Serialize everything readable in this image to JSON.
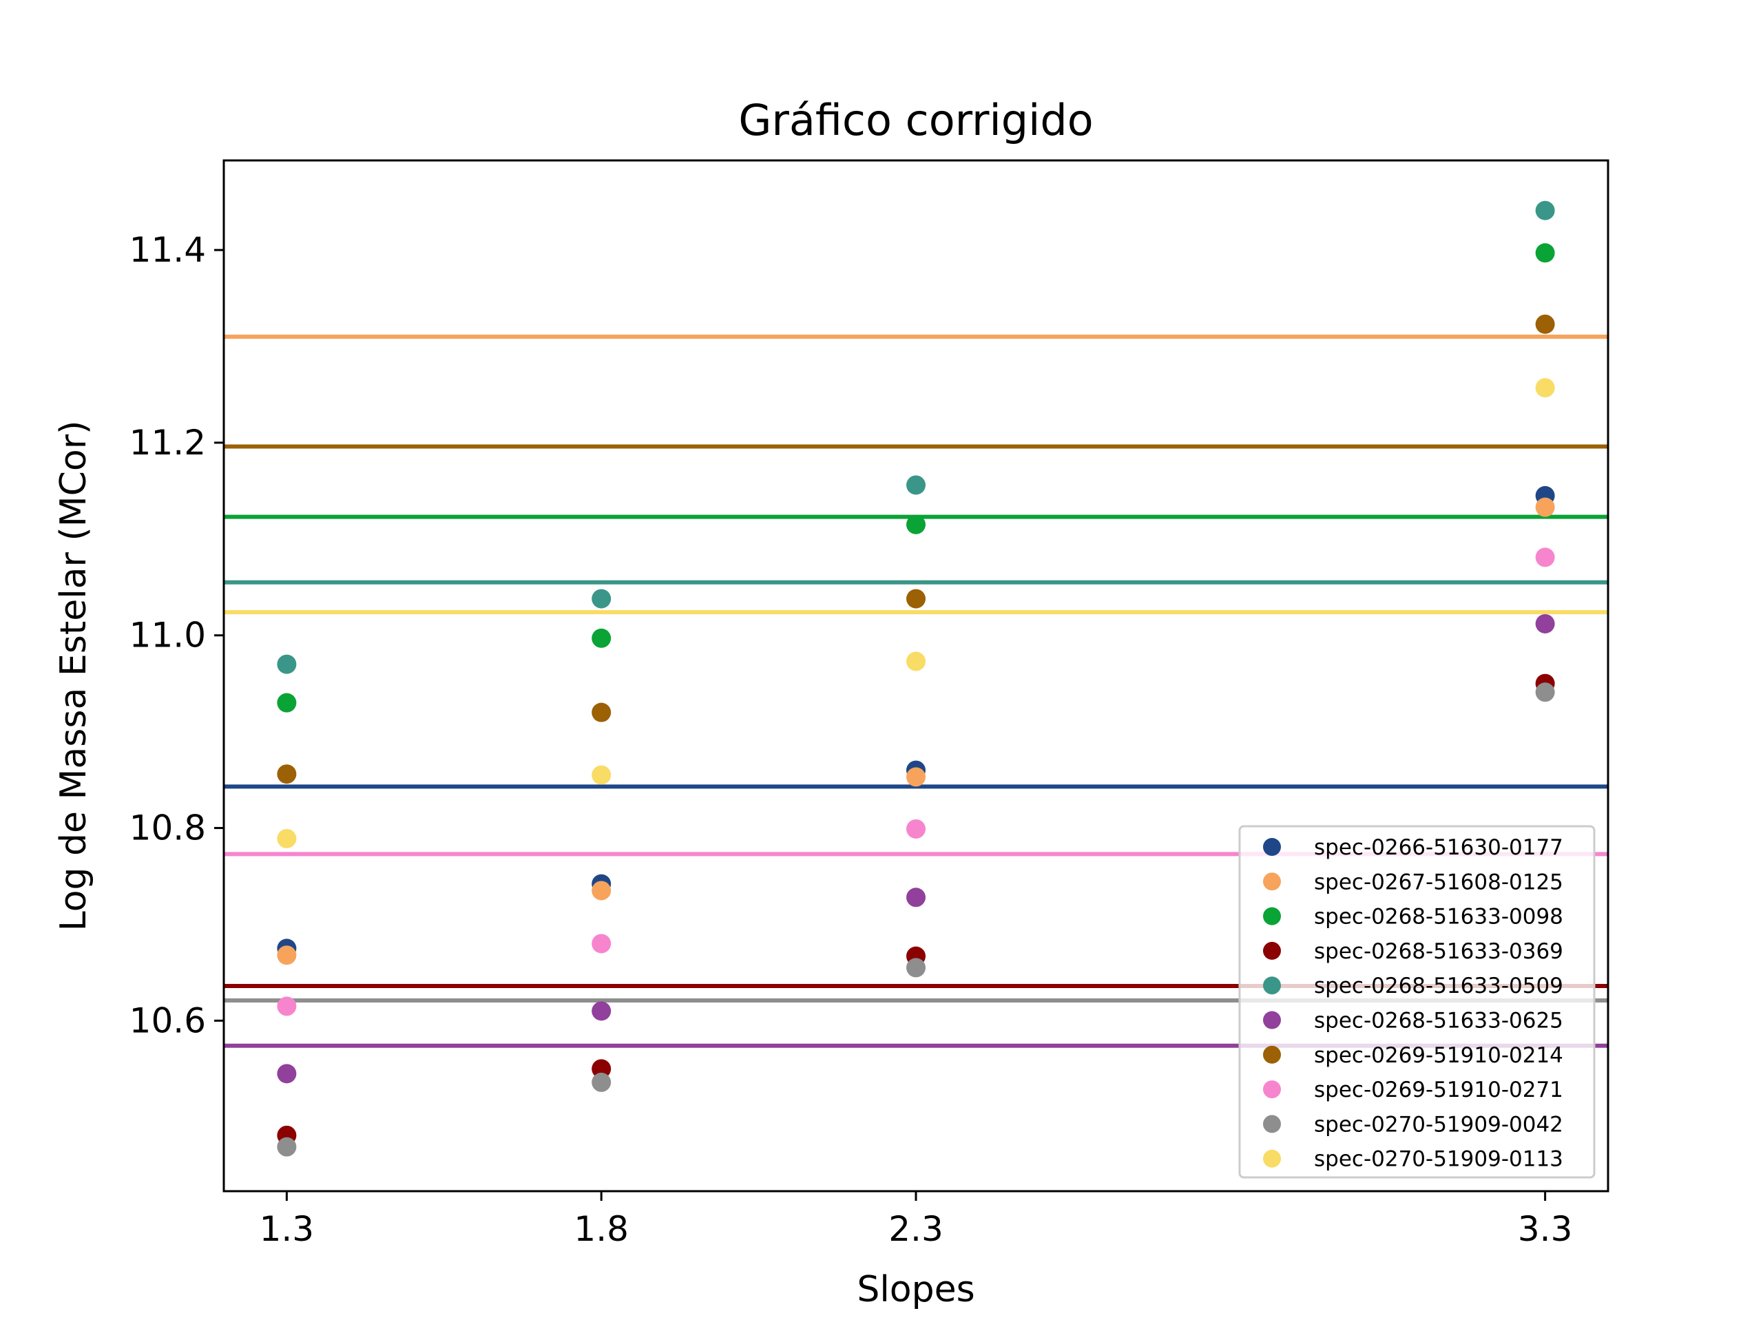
{
  "chart_data": {
    "type": "scatter",
    "title": "Gráfico corrigido",
    "xlabel": "Slopes",
    "ylabel": "Log de Massa Estelar (MCor)",
    "x": [
      1.3,
      1.8,
      2.3,
      3.3
    ],
    "x_ticks": [
      "1.3",
      "1.8",
      "2.3",
      "3.3"
    ],
    "y_ticks": [
      "10.6",
      "10.8",
      "11.0",
      "11.2",
      "11.4"
    ],
    "xlim": [
      1.2,
      3.4
    ],
    "ylim": [
      10.423,
      11.493
    ],
    "grid": false,
    "legend_position": "lower-right",
    "series": [
      {
        "name": "spec-0266-51630-0177",
        "color": "#1f4788",
        "values": [
          10.675,
          10.742,
          10.86,
          11.145
        ],
        "hline": 10.843
      },
      {
        "name": "spec-0267-51608-0125",
        "color": "#f7a35c",
        "values": [
          10.668,
          10.735,
          10.853,
          11.133
        ],
        "hline": 11.31
      },
      {
        "name": "spec-0268-51633-0098",
        "color": "#0aa335",
        "values": [
          10.93,
          10.997,
          11.115,
          11.397
        ],
        "hline": 11.123
      },
      {
        "name": "spec-0268-51633-0369",
        "color": "#8b0000",
        "values": [
          10.481,
          10.55,
          10.667,
          10.95
        ],
        "hline": 10.636
      },
      {
        "name": "spec-0268-51633-0509",
        "color": "#3a9688",
        "values": [
          10.97,
          11.038,
          11.156,
          11.441
        ],
        "hline": 11.055
      },
      {
        "name": "spec-0268-51633-0625",
        "color": "#91409b",
        "values": [
          10.545,
          10.61,
          10.728,
          11.012
        ],
        "hline": 10.574
      },
      {
        "name": "spec-0269-51910-0214",
        "color": "#9c6005",
        "values": [
          10.856,
          10.92,
          11.038,
          11.323
        ],
        "hline": 11.196
      },
      {
        "name": "spec-0269-51910-0271",
        "color": "#f785cd",
        "values": [
          10.615,
          10.68,
          10.799,
          11.081
        ],
        "hline": 10.773
      },
      {
        "name": "spec-0270-51909-0042",
        "color": "#8e8e8e",
        "values": [
          10.469,
          10.536,
          10.655,
          10.941
        ],
        "hline": 10.621
      },
      {
        "name": "spec-0270-51909-0113",
        "color": "#f9dc66",
        "values": [
          10.789,
          10.855,
          10.973,
          11.257
        ],
        "hline": 11.024
      }
    ]
  }
}
